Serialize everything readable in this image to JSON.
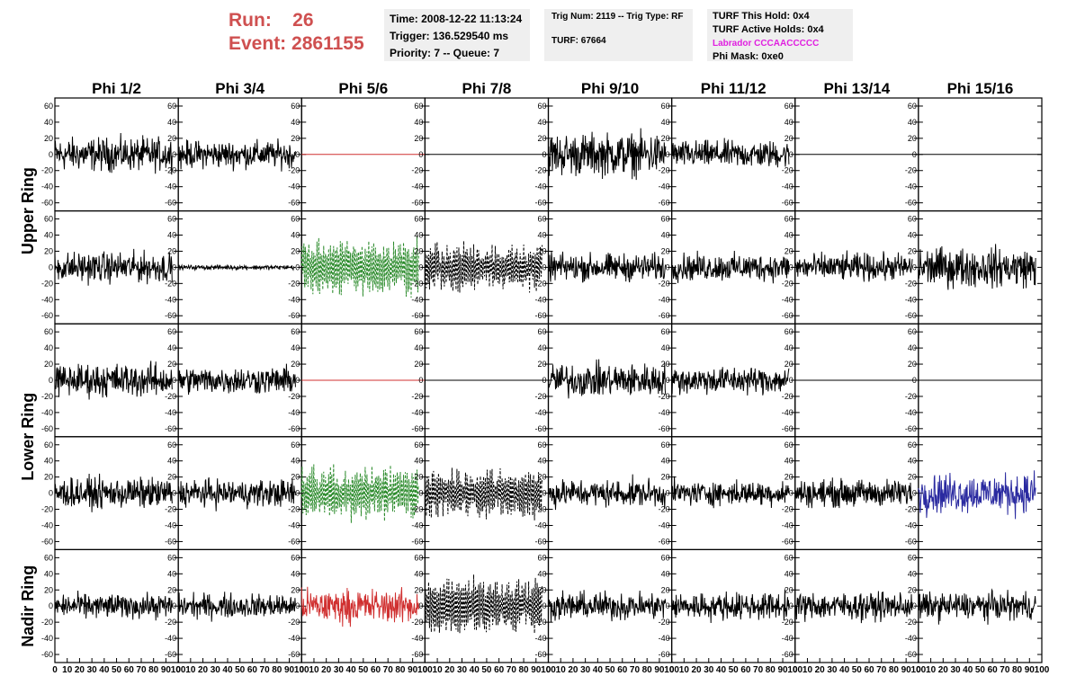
{
  "header": {
    "run_label": "Run:",
    "run_value": "26",
    "event_label": "Event:",
    "event_value": "2861155",
    "time": "Time: 2008-12-22 11:13:24",
    "trigger": "Trigger: 136.529540 ms",
    "priority": "Priority: 7 -- Queue: 7",
    "trig_num": "Trig Num: 2119 -- Trig Type: RF",
    "turf": "TURF: 67664",
    "turf_this_hold": "TURF This Hold: 0x4",
    "turf_active_holds": "TURF Active Holds: 0x4",
    "labrador": "Labrador CCCAACCCCC",
    "phi_mask": "Phi Mask: 0xe0"
  },
  "colors": {
    "run_text": "#cf5050",
    "labrador_text": "#e020e0",
    "trace_default": "#000000",
    "trace_red": "#d03030",
    "trace_green": "#2a8a2a",
    "trace_blue": "#2a2aa0"
  },
  "columns": [
    "Phi 1/2",
    "Phi 3/4",
    "Phi 5/6",
    "Phi 7/8",
    "Phi 9/10",
    "Phi 11/12",
    "Phi 13/14",
    "Phi 15/16"
  ],
  "ring_labels": [
    {
      "label": "Upper Ring",
      "rows": [
        0,
        1
      ]
    },
    {
      "label": "Lower Ring",
      "rows": [
        2,
        3
      ]
    },
    {
      "label": "Nadir Ring",
      "rows": [
        4,
        4
      ]
    }
  ],
  "chart_data": {
    "type": "line",
    "xlim": [
      0,
      100
    ],
    "ylim": [
      -70,
      70
    ],
    "y_ticks": [
      -60,
      -40,
      -20,
      0,
      20,
      40,
      60
    ],
    "x_ticks": [
      0,
      10,
      20,
      30,
      40,
      50,
      60,
      70,
      80,
      90,
      100
    ],
    "x_tick_labels": [
      "0",
      "10",
      "20",
      "30",
      "40",
      "50",
      "60",
      "70",
      "80",
      "90",
      "100"
    ],
    "trace_x_range": [
      0,
      95
    ],
    "grid": false,
    "panels": [
      [
        {
          "kind": "noise",
          "amp": 22,
          "color": "#000000",
          "style": "solid"
        },
        {
          "kind": "noise",
          "amp": 18,
          "color": "#000000",
          "style": "solid"
        },
        {
          "kind": "flat",
          "amp": 0,
          "color": "#d03030",
          "style": "solid"
        },
        {
          "kind": "flat",
          "amp": 0,
          "color": "#000000",
          "style": "solid"
        },
        {
          "kind": "noise",
          "amp": 28,
          "color": "#000000",
          "style": "solid"
        },
        {
          "kind": "noise",
          "amp": 18,
          "color": "#000000",
          "style": "solid"
        },
        {
          "kind": "flat",
          "amp": 0,
          "color": "#000000",
          "style": "solid"
        },
        {
          "kind": "flat",
          "amp": 0,
          "color": "#000000",
          "style": "solid"
        }
      ],
      [
        {
          "kind": "noise",
          "amp": 20,
          "color": "#000000",
          "style": "solid"
        },
        {
          "kind": "noise",
          "amp": 3,
          "color": "#000000",
          "style": "solid"
        },
        {
          "kind": "osc",
          "amp": 35,
          "color": "#2a8a2a",
          "style": "dashed"
        },
        {
          "kind": "osc",
          "amp": 30,
          "color": "#000000",
          "style": "dashed"
        },
        {
          "kind": "noise",
          "amp": 18,
          "color": "#000000",
          "style": "solid"
        },
        {
          "kind": "noise",
          "amp": 18,
          "color": "#000000",
          "style": "solid"
        },
        {
          "kind": "noise",
          "amp": 18,
          "color": "#000000",
          "style": "solid"
        },
        {
          "kind": "noise",
          "amp": 26,
          "color": "#000000",
          "style": "solid"
        }
      ],
      [
        {
          "kind": "noise",
          "amp": 22,
          "color": "#000000",
          "style": "solid"
        },
        {
          "kind": "noise",
          "amp": 18,
          "color": "#000000",
          "style": "solid"
        },
        {
          "kind": "flat",
          "amp": 0,
          "color": "#d03030",
          "style": "solid"
        },
        {
          "kind": "flat",
          "amp": 0,
          "color": "#000000",
          "style": "solid"
        },
        {
          "kind": "noise",
          "amp": 22,
          "color": "#000000",
          "style": "solid"
        },
        {
          "kind": "noise",
          "amp": 18,
          "color": "#000000",
          "style": "solid"
        },
        {
          "kind": "flat",
          "amp": 0,
          "color": "#000000",
          "style": "solid"
        },
        {
          "kind": "flat",
          "amp": 0,
          "color": "#000000",
          "style": "solid"
        }
      ],
      [
        {
          "kind": "noise",
          "amp": 20,
          "color": "#000000",
          "style": "solid"
        },
        {
          "kind": "noise",
          "amp": 18,
          "color": "#000000",
          "style": "solid"
        },
        {
          "kind": "osc",
          "amp": 33,
          "color": "#2a8a2a",
          "style": "dashed"
        },
        {
          "kind": "osc",
          "amp": 32,
          "color": "#000000",
          "style": "dashed"
        },
        {
          "kind": "noise",
          "amp": 18,
          "color": "#000000",
          "style": "solid"
        },
        {
          "kind": "noise",
          "amp": 16,
          "color": "#000000",
          "style": "solid"
        },
        {
          "kind": "noise",
          "amp": 18,
          "color": "#000000",
          "style": "solid"
        },
        {
          "kind": "noise",
          "amp": 26,
          "color": "#2a2aa0",
          "style": "solid"
        }
      ],
      [
        {
          "kind": "noise",
          "amp": 16,
          "color": "#000000",
          "style": "solid"
        },
        {
          "kind": "noise",
          "amp": 16,
          "color": "#000000",
          "style": "solid"
        },
        {
          "kind": "noise",
          "amp": 22,
          "color": "#d03030",
          "style": "solid"
        },
        {
          "kind": "osc",
          "amp": 36,
          "color": "#000000",
          "style": "dashed"
        },
        {
          "kind": "noise",
          "amp": 18,
          "color": "#000000",
          "style": "solid"
        },
        {
          "kind": "noise",
          "amp": 18,
          "color": "#000000",
          "style": "solid"
        },
        {
          "kind": "noise",
          "amp": 18,
          "color": "#000000",
          "style": "solid"
        },
        {
          "kind": "noise",
          "amp": 18,
          "color": "#000000",
          "style": "solid"
        }
      ]
    ]
  }
}
